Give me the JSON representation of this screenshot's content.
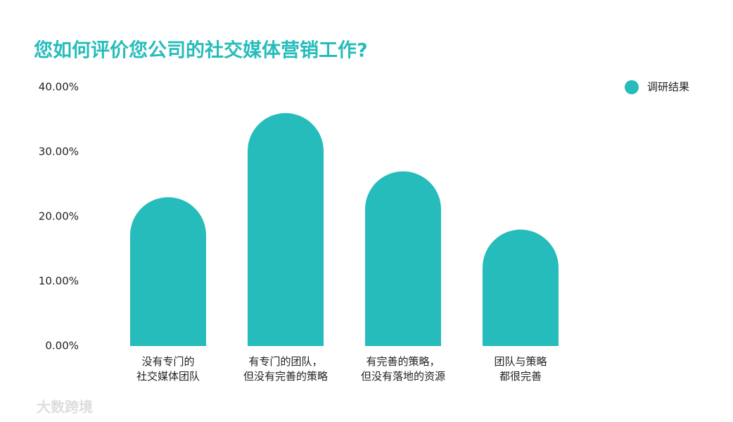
{
  "chart_data": {
    "type": "bar",
    "title": "您如何评价您公司的社交媒体营销工作?",
    "categories": [
      "没有专门的\n社交媒体团队",
      "有专门的团队，\n但没有完善的策略",
      "有完善的策略，\n但没有落地的资源",
      "团队与策略\n都很完善"
    ],
    "series": [
      {
        "name": "调研结果",
        "color": "#26bcbb",
        "values": [
          23,
          36,
          27,
          18
        ]
      }
    ],
    "ylim": [
      0,
      40
    ],
    "yticks": [
      {
        "value": 0,
        "label": "0.00%"
      },
      {
        "value": 10,
        "label": "10.00%"
      },
      {
        "value": 20,
        "label": "20.00%"
      },
      {
        "value": 30,
        "label": "30.00%"
      },
      {
        "value": 40,
        "label": "40.00%"
      }
    ],
    "grid": false,
    "legend": "top-right"
  },
  "watermark": "大数跨境"
}
